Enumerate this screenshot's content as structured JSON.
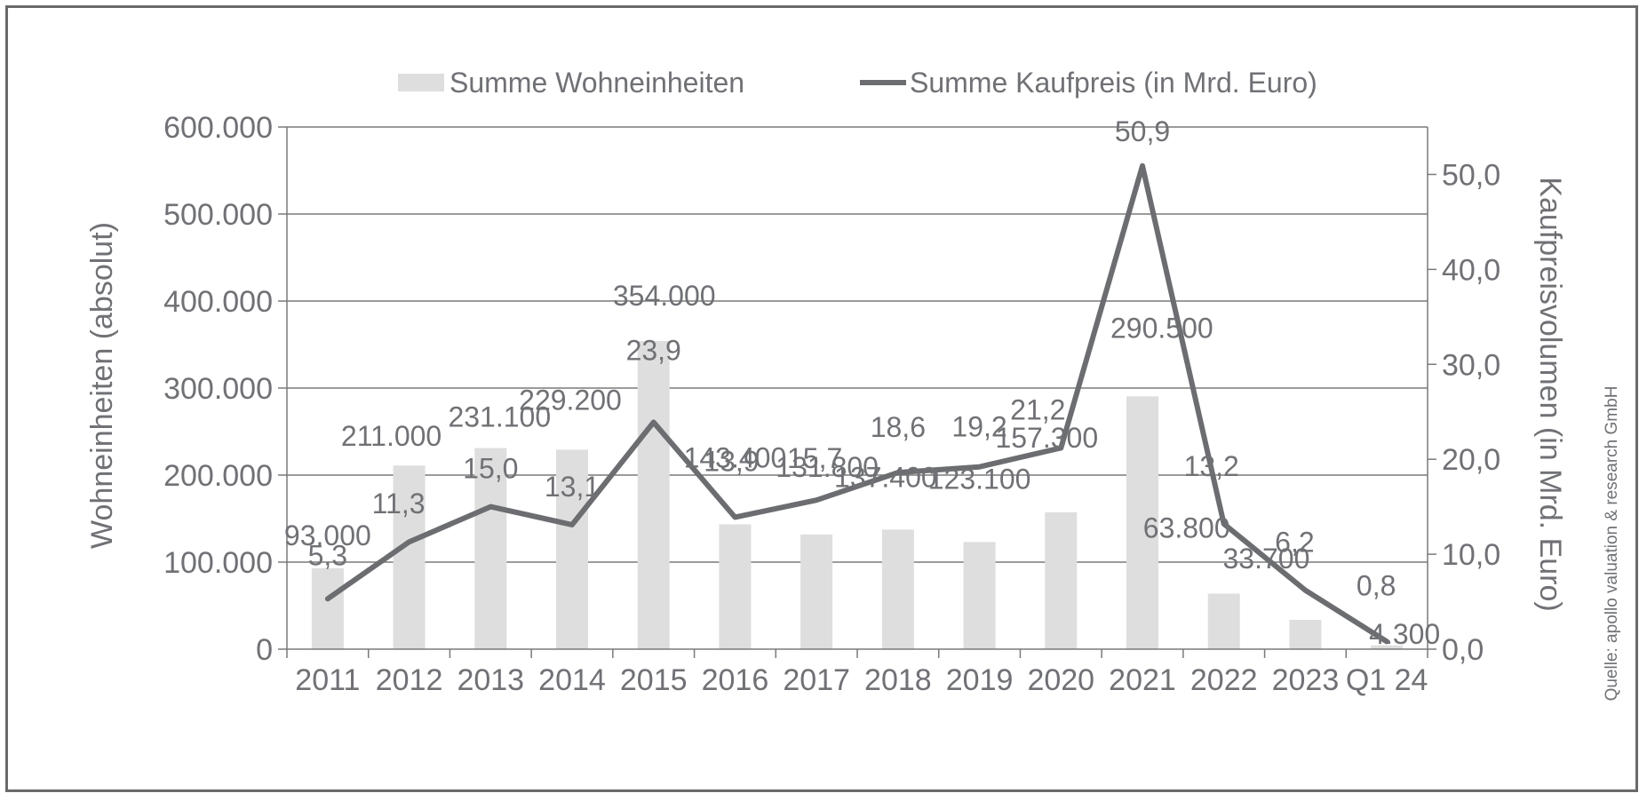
{
  "chart_data": {
    "type": "bar",
    "categories": [
      "2011",
      "2012",
      "2013",
      "2014",
      "2015",
      "2016",
      "2017",
      "2018",
      "2019",
      "2020",
      "2021",
      "2022",
      "2023",
      "Q1 24"
    ],
    "series": [
      {
        "name": "Summe Wohneinheiten",
        "kind": "bar",
        "axis": "left",
        "values": [
          93000,
          211000,
          231100,
          229200,
          354000,
          143400,
          131800,
          137400,
          123100,
          157300,
          290500,
          63800,
          33700,
          4300
        ],
        "labels": [
          "93.000",
          "211.000",
          "231.100",
          "229.200",
          "354.000",
          "143.400",
          "131.800",
          "137.400",
          "123.100",
          "157.300",
          "290.500",
          "63.800",
          "33.700",
          "4.300"
        ]
      },
      {
        "name": "Summe Kaufpreis (in Mrd. Euro)",
        "kind": "line",
        "axis": "right",
        "values": [
          5.3,
          11.3,
          15.0,
          13.1,
          23.9,
          13.9,
          15.7,
          18.6,
          19.2,
          21.2,
          50.9,
          13.2,
          6.2,
          0.8
        ],
        "labels": [
          "5,3",
          "11,3",
          "15,0",
          "13,1",
          "23,9",
          "13,9",
          "15,7",
          "18,6",
          "19,2",
          "21,2",
          "50,9",
          "13,2",
          "6,2",
          "0,8"
        ]
      }
    ],
    "y_left": {
      "label": "Wohneinheiten (absolut)",
      "ylim": [
        0,
        600000
      ],
      "ticks": [
        0,
        100000,
        200000,
        300000,
        400000,
        500000,
        600000
      ],
      "tick_labels": [
        "0",
        "100.000",
        "200.000",
        "300.000",
        "400.000",
        "500.000",
        "600.000"
      ]
    },
    "y_right": {
      "label": "Kaufpreisvolumen (in Mrd. Euro)",
      "ylim": [
        0,
        55
      ],
      "ticks": [
        0,
        10,
        20,
        30,
        40,
        50
      ],
      "tick_labels": [
        "0,0",
        "10,0",
        "20,0",
        "30,0",
        "40,0",
        "50,0"
      ]
    },
    "legend": {
      "position": "top",
      "entries": [
        "Summe Wohneinheiten",
        "Summe Kaufpreis (in Mrd. Euro)"
      ]
    },
    "grid": true,
    "source": "Quelle: apollo valuation & research GmbH",
    "colors": {
      "bar": "#dedede",
      "line": "#6b6d71",
      "grid": "#7a7a7a",
      "text": "#6f7175"
    }
  }
}
